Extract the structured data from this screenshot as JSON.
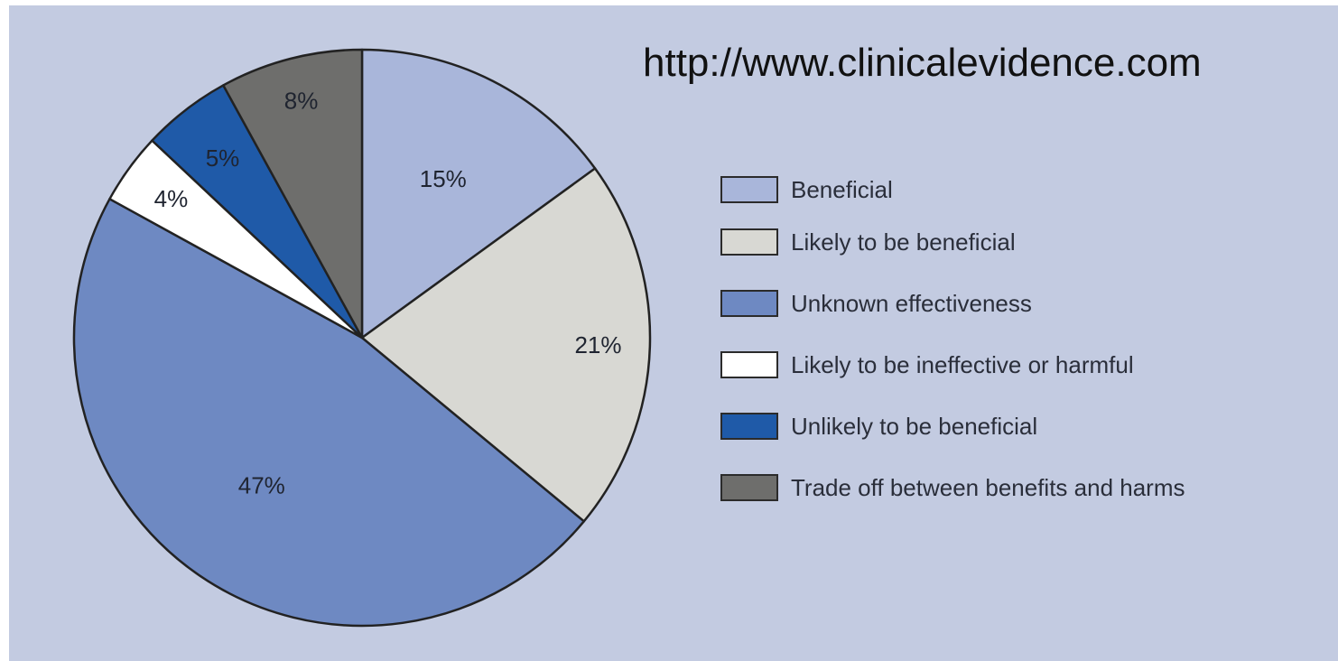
{
  "url_text": "http://www.clinicalevidence.com",
  "colors": {
    "background": "#c3cbe1",
    "Beneficial": "#a9b6da",
    "Likely to be beneficial": "#d8d8d3",
    "Unknown effectiveness": "#6e89c2",
    "Likely to be ineffective or harmful": "#ffffff",
    "Unlikely to be beneficial": "#1f5aa8",
    "Trade off between benefits and harms": "#6e6e6c"
  },
  "chart_data": {
    "type": "pie",
    "title": "",
    "categories": [
      "Beneficial",
      "Likely to be beneficial",
      "Unknown effectiveness",
      "Likely to be ineffective or harmful",
      "Unlikely to be beneficial",
      "Trade off between benefits and harms"
    ],
    "values": [
      15,
      21,
      47,
      4,
      5,
      8
    ],
    "value_labels": [
      "15%",
      "21%",
      "47%",
      "4%",
      "5%",
      "8%"
    ],
    "start": "12 o'clock",
    "direction": "clockwise",
    "legend_placement": "right"
  }
}
